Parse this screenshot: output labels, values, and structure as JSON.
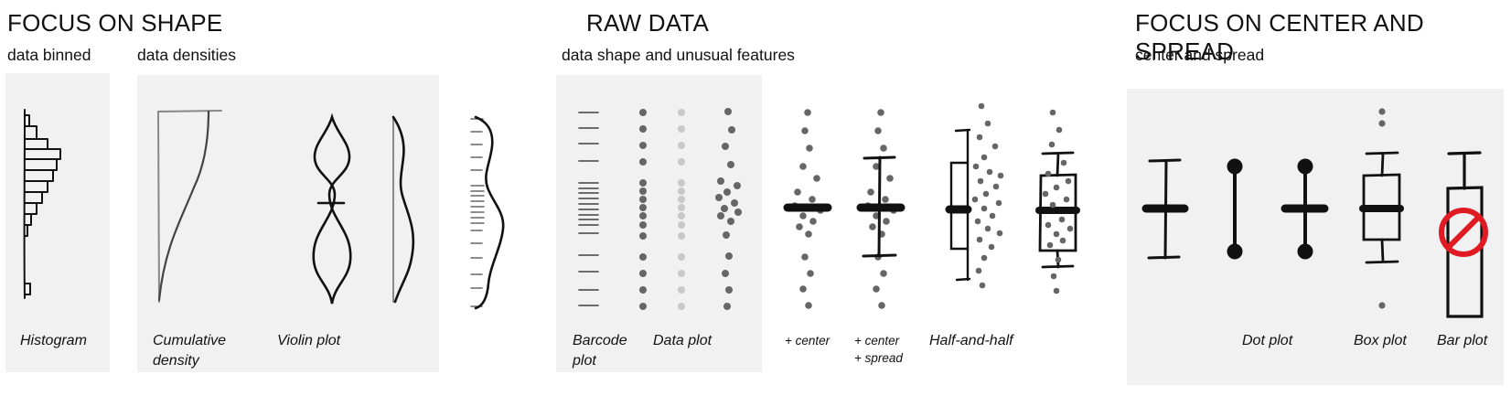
{
  "sections": {
    "shape": {
      "title": "FOCUS ON SHAPE",
      "sub_binned": "data binned",
      "sub_densities": "data densities"
    },
    "raw": {
      "title": "RAW DATA",
      "subtitle": "data shape and unusual features"
    },
    "center": {
      "title": "FOCUS ON CENTER AND SPREAD",
      "subtitle": "center and spread"
    }
  },
  "captions": {
    "histogram": "Histogram",
    "cumulative_1": "Cumulative",
    "cumulative_2": "density",
    "violin": "Violin plot",
    "barcode_1": "Barcode",
    "barcode_2": "plot",
    "data_plot": "Data plot",
    "plus_center": "+ center",
    "plus_center_spread_1": "+ center",
    "plus_center_spread_2": "+ spread",
    "half_and_half": "Half-and-half",
    "dot_plot": "Dot plot",
    "box_plot": "Box plot",
    "bar_plot": "Bar plot"
  },
  "colors": {
    "panel": "#f1f1f1",
    "ink": "#111111",
    "dot": "#666666",
    "dot_light": "#c8c8c8",
    "barcode": "#5a5a5a",
    "forbidden": "#e01a22"
  },
  "icons": {
    "bar_plot_marker": "prohibited-icon"
  }
}
